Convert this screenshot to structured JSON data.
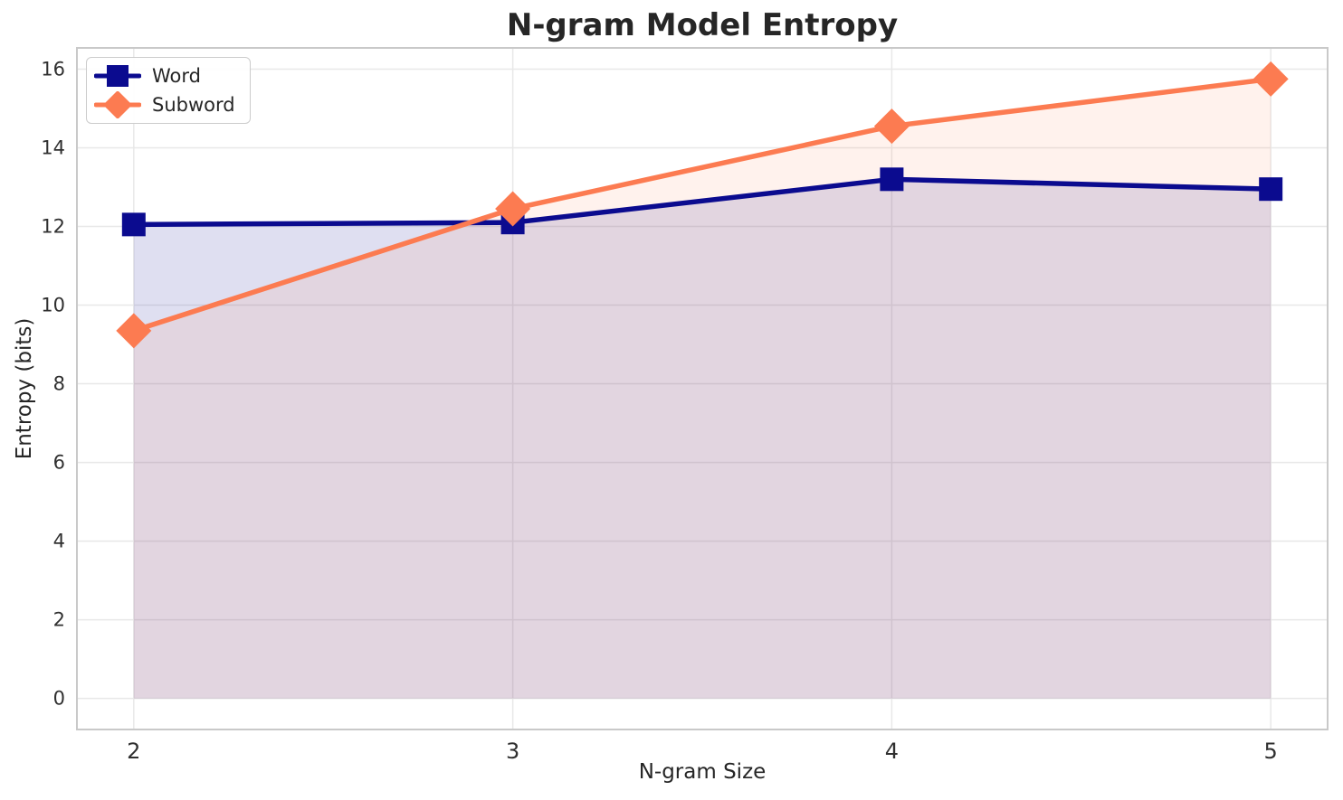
{
  "chart_data": {
    "type": "line",
    "title": "N-gram Model Entropy",
    "xlabel": "N-gram Size",
    "ylabel": "Entropy (bits)",
    "x": [
      2,
      3,
      4,
      5
    ],
    "series": [
      {
        "name": "Word",
        "marker": "square",
        "color": "#0b0b8f",
        "fill_opacity": 0.13,
        "values": [
          12.05,
          12.1,
          13.2,
          12.95
        ]
      },
      {
        "name": "Subword",
        "marker": "diamond",
        "color": "#fc7b51",
        "fill_opacity": 0.1,
        "values": [
          9.35,
          12.45,
          14.55,
          15.75
        ]
      }
    ],
    "xticks": [
      2,
      3,
      4,
      5
    ],
    "yticks": [
      0,
      2,
      4,
      6,
      8,
      10,
      12,
      14,
      16
    ],
    "xlim": [
      1.85,
      5.15
    ],
    "ylim": [
      -0.79,
      16.54
    ],
    "fill_baseline": 0,
    "grid": true,
    "legend_position": "upper left",
    "colors": {
      "grid": "#e8e8e8",
      "spine": "#c9c9c9",
      "title_text": "#262626",
      "tick_text": "#303030"
    }
  }
}
